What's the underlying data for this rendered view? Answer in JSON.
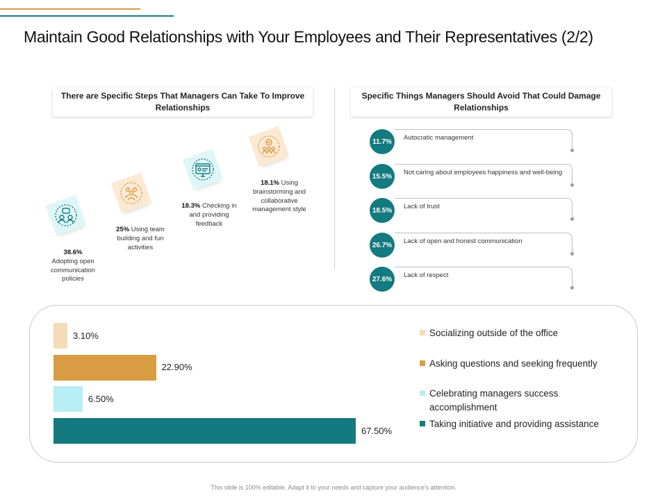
{
  "title": "Maintain Good Relationships with Your Employees and Their Representatives (2/2)",
  "colors": {
    "teal": "#137a7f",
    "gold": "#d99c43",
    "light_teal": "#b8eef5",
    "light_gold": "#f6dcb6"
  },
  "left_section": {
    "heading": "There are Specific Steps That Managers Can Take To Improve Relationships",
    "steps": [
      {
        "percent": "38.6%",
        "text": "Adopting open communication policies",
        "icon": "team-chat-icon"
      },
      {
        "percent": "25%",
        "text": "Using team building and fun activities",
        "icon": "team-building-icon"
      },
      {
        "percent": "18.3%",
        "text": "Checking in and providing feedback",
        "icon": "feedback-screen-icon"
      },
      {
        "percent": "18.1%",
        "text": "Using brainstorming and collaborative management style",
        "icon": "brainstorm-icon"
      }
    ]
  },
  "right_section": {
    "heading": "Specific Things Managers Should Avoid That Could Damage Relationships",
    "items": [
      {
        "percent": "11.7%",
        "label": "Autocratic management"
      },
      {
        "percent": "15.5%",
        "label": "Not caring about employees happiness and well-being"
      },
      {
        "percent": "18.5%",
        "label": "Lack of trust"
      },
      {
        "percent": "26.7%",
        "label": "Lack of open and honest communication"
      },
      {
        "percent": "27.6%",
        "label": "Lack of respect"
      }
    ]
  },
  "chart_data": {
    "type": "bar",
    "orientation": "horizontal",
    "categories": [
      "Socializing outside of the office",
      "Asking questions and seeking frequently",
      "Celebrating managers success accomplishment",
      "Taking initiative and providing assistance"
    ],
    "values": [
      3.1,
      22.9,
      6.5,
      67.5
    ],
    "value_labels": [
      "3.10%",
      "22.90%",
      "6.50%",
      "67.50%"
    ],
    "colors": [
      "#f6dcb6",
      "#d99c43",
      "#b8eef5",
      "#137a7f"
    ],
    "xlim": [
      0,
      67.5
    ],
    "legend_position": "right"
  },
  "footer": "This slide is 100% editable. Adapt it to your needs and capture your audience's attention."
}
